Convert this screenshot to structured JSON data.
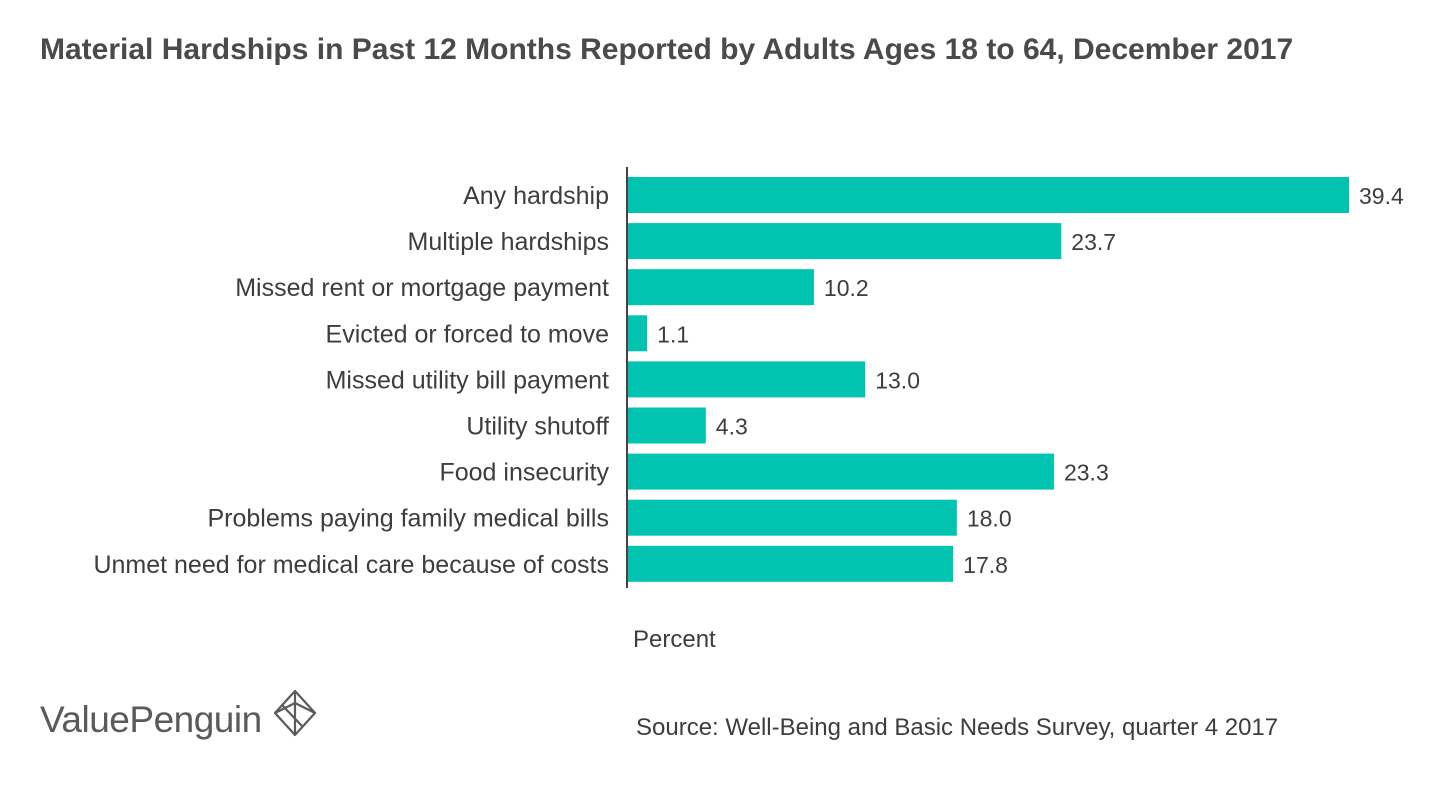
{
  "chart_data": {
    "type": "bar",
    "orientation": "horizontal",
    "title": "Material Hardships in Past 12 Months Reported by Adults Ages 18 to 64, December 2017",
    "xlabel": "Percent",
    "ylabel": "",
    "xlim": [
      0,
      39.4
    ],
    "grid": false,
    "categories": [
      "Any hardship",
      "Multiple hardships",
      "Missed rent or mortgage payment",
      "Evicted or forced to move",
      "Missed utility bill payment",
      "Utility shutoff",
      "Food insecurity",
      "Problems paying family medical bills",
      "Unmet need for medical care because of costs"
    ],
    "values": [
      39.4,
      23.7,
      10.2,
      1.1,
      13.0,
      4.3,
      23.3,
      18.0,
      17.8
    ],
    "value_labels": [
      "39.4",
      "23.7",
      "10.2",
      "1.1",
      "13.0",
      "4.3",
      "23.3",
      "18.0",
      "17.8"
    ],
    "bar_color": "#00c4b0"
  },
  "footer": {
    "brand": "ValuePenguin",
    "source": "Source: Well-Being and Basic Needs Survey, quarter 4 2017"
  },
  "colors": {
    "bar": "#00c4b0",
    "axis": "#444444",
    "text": "#3d3d3d"
  }
}
